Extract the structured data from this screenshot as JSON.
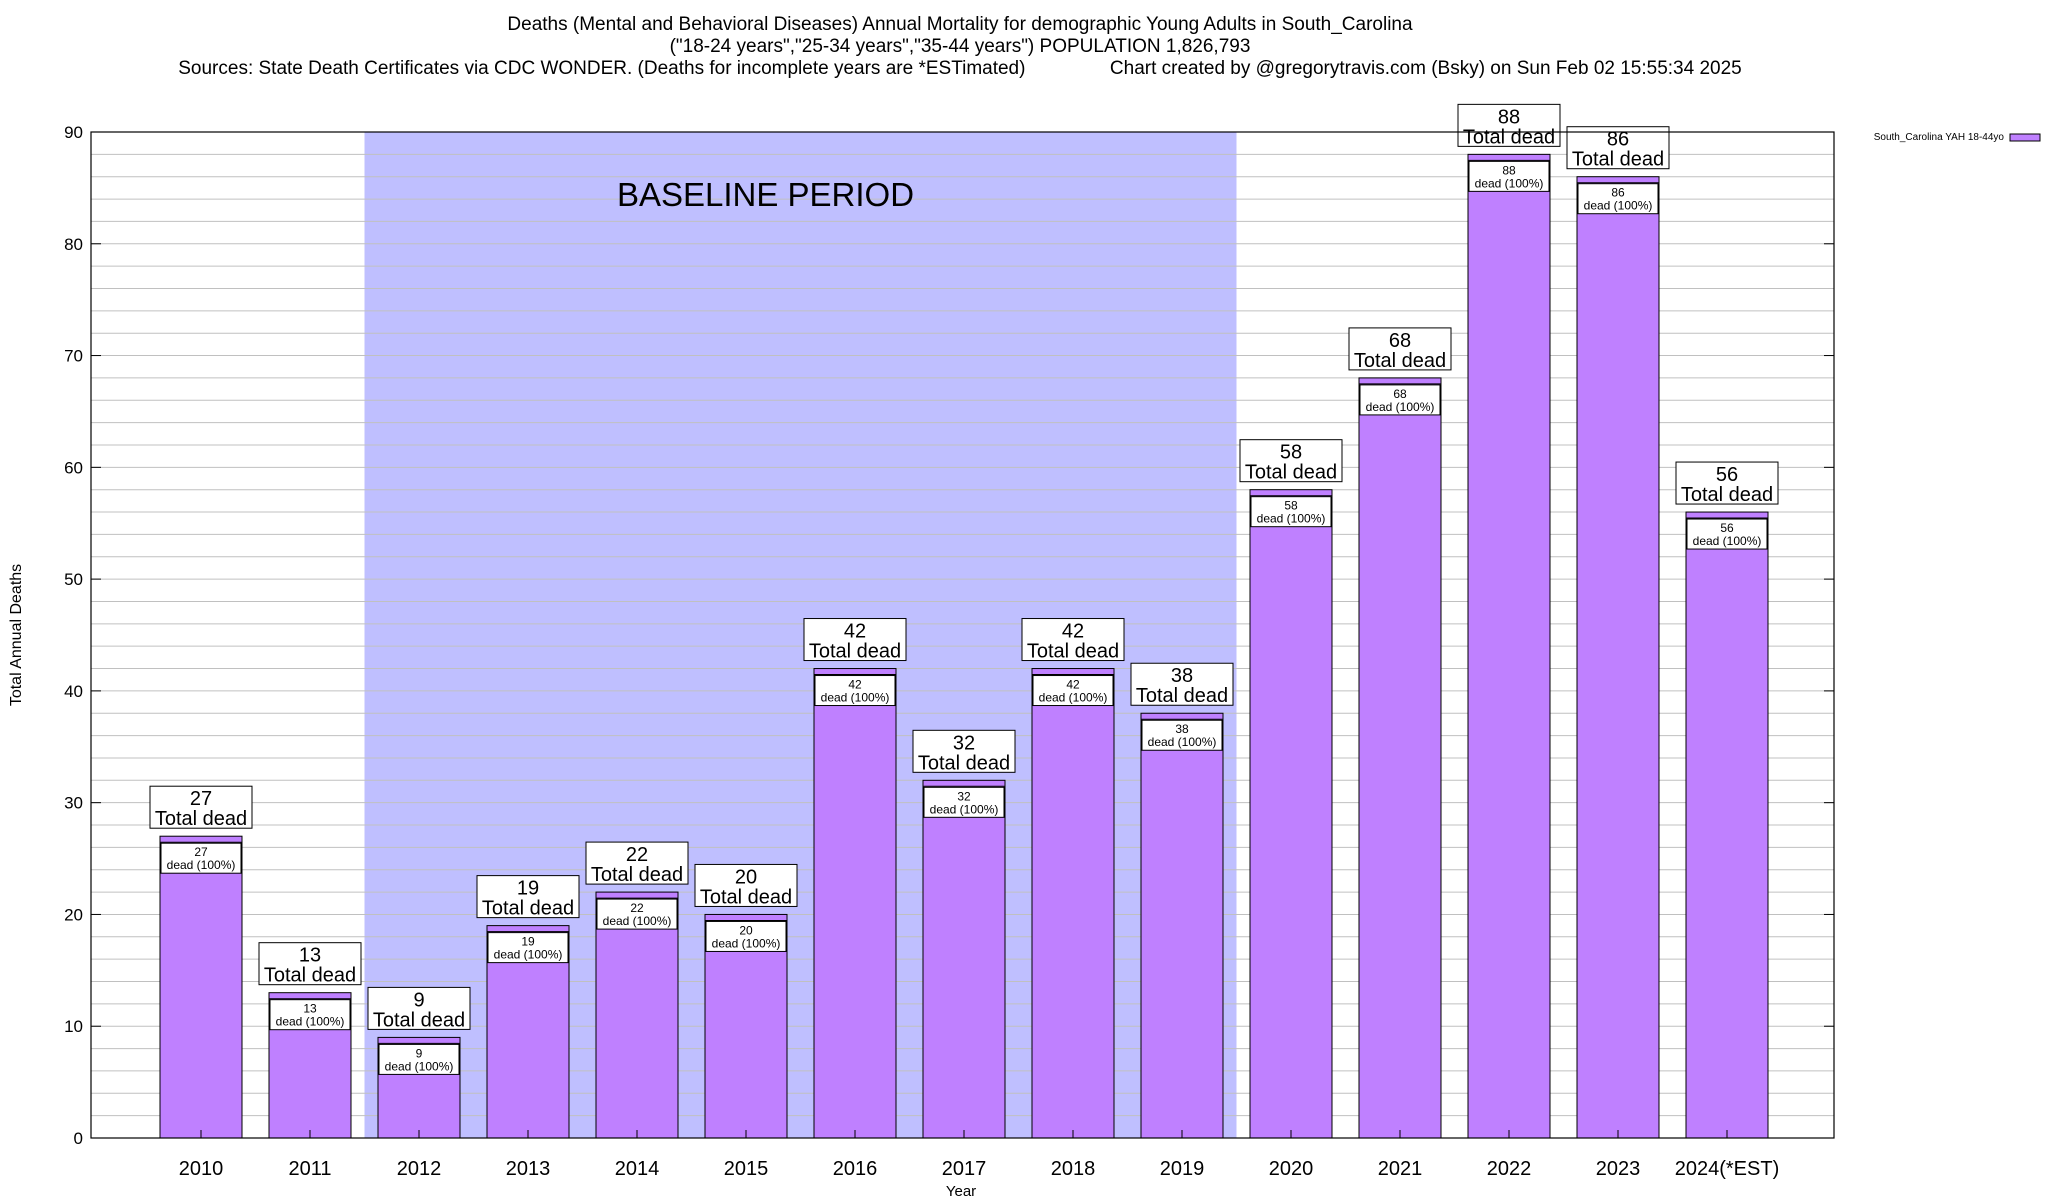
{
  "header": {
    "title_line1": "Deaths (Mental and Behavioral Diseases) Annual Mortality for demographic Young Adults in South_Carolina",
    "title_line2": "(\"18-24 years\",\"25-34 years\",\"35-44 years\") POPULATION 1,826,793",
    "title_line3": "Sources: State Death Certificates via CDC WONDER. (Deaths for incomplete years are *ESTimated)                Chart created by @gregorytravis.com (Bsky) on Sun Feb 02 15:55:34 2025"
  },
  "colors": {
    "bar_fill": "#bf80ff",
    "baseline_shade": "#bfbfff",
    "grid": "#c0c0c0",
    "border": "#000000"
  },
  "chart_data": {
    "type": "bar",
    "xlabel": "Year",
    "ylabel": "Total Annual Deaths",
    "ylim": [
      0,
      90
    ],
    "yticks": [
      0,
      10,
      20,
      30,
      40,
      50,
      60,
      70,
      80,
      90
    ],
    "grid": true,
    "legend_position": "top-right",
    "categories": [
      "2010",
      "2011",
      "2012",
      "2013",
      "2014",
      "2015",
      "2016",
      "2017",
      "2018",
      "2019",
      "2020",
      "2021",
      "2022",
      "2023",
      "2024(*EST)"
    ],
    "series": [
      {
        "name": "South_Carolina YAH 18-44yo",
        "values": [
          27,
          13,
          9,
          19,
          22,
          20,
          42,
          32,
          42,
          38,
          58,
          68,
          88,
          86,
          56
        ]
      }
    ],
    "top_label_suffix": "Total dead",
    "inner_label_suffix": "dead (100%)",
    "annotation": {
      "text": "BASELINE PERIOD",
      "from_category": "2012",
      "to_category": "2019"
    }
  }
}
